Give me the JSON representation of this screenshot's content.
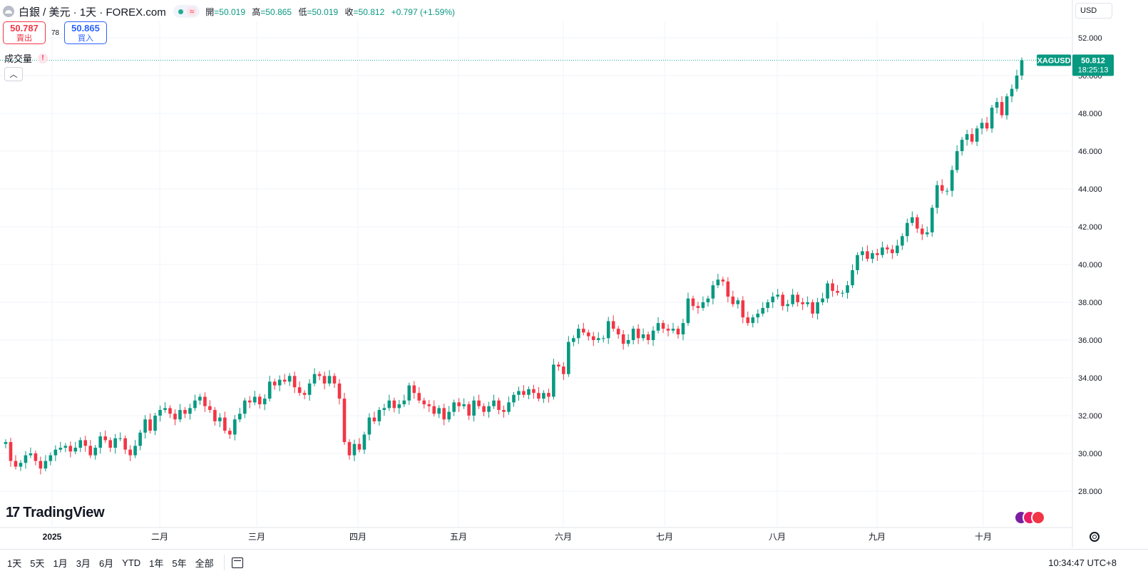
{
  "header": {
    "symbol_title": "白銀 / 美元 · 1天 · FOREX.com",
    "approx_icon": "≈",
    "ohlc": [
      {
        "label": "開",
        "value": "=50.019"
      },
      {
        "label": "高",
        "value": "=50.865"
      },
      {
        "label": "低",
        "value": "=50.019"
      },
      {
        "label": "收",
        "value": "=50.812"
      },
      {
        "label": "",
        "value": "+0.797 (+1.59%)"
      }
    ],
    "currency": "USD"
  },
  "trade": {
    "sell_price": "50.787",
    "sell_label": "賣出",
    "spread": "78",
    "buy_price": "50.865",
    "buy_label": "買入"
  },
  "volume": {
    "label": "成交量",
    "warning": "!"
  },
  "price_tag": {
    "symbol": "XAGUSD",
    "price": "50.812",
    "countdown": "18:25:13"
  },
  "logo_text": "TradingView",
  "bottom_bar": {
    "ranges": [
      "1天",
      "5天",
      "1月",
      "3月",
      "6月",
      "YTD",
      "1年",
      "5年",
      "全部"
    ],
    "clock": "10:34:47 UTC+8"
  },
  "colors": {
    "up": "#089981",
    "down": "#f23645",
    "grid": "#f0f3fa",
    "price_line": "#22ab94"
  },
  "chart_data": {
    "type": "candlestick",
    "symbol": "XAGUSD",
    "ylim": [
      27.0,
      53.0
    ],
    "y_ticks": [
      "28.000",
      "30.000",
      "32.000",
      "34.000",
      "36.000",
      "38.000",
      "40.000",
      "42.000",
      "44.000",
      "46.000",
      "48.000",
      "50.000",
      "52.000"
    ],
    "x_labels": [
      "2025",
      "二月",
      "三月",
      "四月",
      "五月",
      "六月",
      "七月",
      "八月",
      "九月",
      "十月"
    ],
    "last_price": 50.812,
    "closes": [
      30.6,
      29.6,
      29.3,
      29.5,
      29.9,
      30.0,
      29.6,
      29.2,
      29.6,
      29.9,
      30.2,
      30.3,
      30.4,
      30.1,
      30.3,
      30.7,
      30.4,
      29.9,
      30.3,
      30.9,
      30.7,
      30.3,
      30.8,
      30.8,
      30.2,
      29.9,
      30.4,
      31.1,
      31.8,
      31.2,
      32.0,
      32.3,
      32.4,
      32.1,
      31.8,
      32.3,
      32.1,
      32.4,
      32.8,
      33.0,
      32.5,
      32.3,
      31.7,
      31.9,
      31.2,
      31.0,
      31.8,
      32.1,
      32.8,
      32.7,
      33.0,
      32.6,
      32.9,
      33.8,
      33.6,
      33.9,
      33.8,
      34.1,
      33.5,
      33.2,
      33.1,
      33.7,
      34.2,
      34.1,
      33.7,
      34.1,
      33.7,
      32.9,
      30.6,
      29.9,
      30.5,
      30.2,
      31.0,
      31.9,
      31.7,
      32.3,
      32.4,
      32.8,
      32.4,
      32.6,
      32.8,
      33.6,
      33.2,
      32.8,
      32.6,
      32.5,
      32.1,
      32.4,
      31.8,
      32.2,
      32.7,
      32.5,
      32.6,
      32.0,
      32.8,
      32.5,
      32.2,
      32.5,
      32.8,
      32.3,
      32.2,
      32.7,
      33.1,
      33.3,
      33.1,
      33.4,
      33.2,
      32.9,
      33.2,
      33.0,
      34.7,
      34.6,
      34.2,
      35.9,
      36.1,
      36.6,
      36.4,
      36.2,
      36.0,
      36.1,
      36.1,
      37.0,
      36.6,
      36.3,
      35.8,
      36.0,
      36.6,
      36.1,
      36.3,
      36.0,
      36.5,
      36.9,
      36.6,
      36.5,
      36.6,
      36.3,
      36.9,
      38.2,
      37.8,
      37.7,
      38.0,
      38.2,
      38.9,
      39.2,
      39.1,
      38.3,
      37.9,
      38.1,
      37.2,
      36.9,
      37.2,
      37.4,
      37.7,
      38.0,
      38.3,
      38.4,
      37.8,
      37.9,
      38.4,
      38.0,
      37.9,
      38.0,
      37.4,
      38.0,
      38.2,
      39.0,
      38.6,
      38.5,
      38.5,
      38.9,
      39.7,
      40.5,
      40.7,
      40.3,
      40.6,
      40.5,
      40.9,
      40.8,
      40.6,
      41.0,
      41.5,
      42.2,
      42.5,
      41.9,
      41.6,
      41.7,
      43.0,
      44.2,
      43.9,
      43.9,
      45.0,
      46.0,
      46.6,
      46.9,
      46.5,
      47.2,
      47.5,
      47.2,
      48.3,
      48.6,
      47.9,
      48.9,
      49.3,
      50.0,
      50.812
    ]
  }
}
